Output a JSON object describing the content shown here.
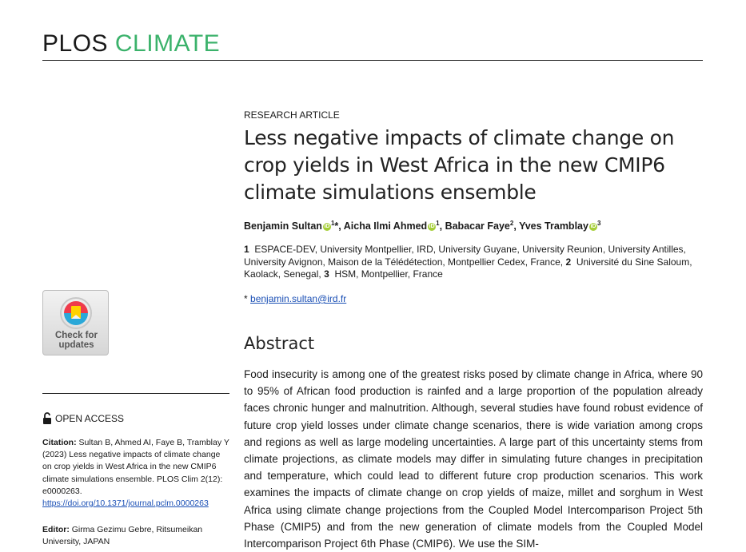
{
  "journal": {
    "name_part1": "PLOS",
    "name_part2": "CLIMATE"
  },
  "article": {
    "type": "RESEARCH ARTICLE",
    "title": "Less negative impacts of climate change on crop yields in West Africa in the new CMIP6 climate simulations ensemble",
    "authors": [
      {
        "name": "Benjamin Sultan",
        "sup": "1",
        "extra": "*"
      },
      {
        "name": "Aicha Ilmi Ahmed",
        "sup": "1"
      },
      {
        "name": "Babacar Faye",
        "sup": "2"
      },
      {
        "name": "Yves Tramblay",
        "sup": "3"
      }
    ],
    "affiliations": [
      {
        "num": "1",
        "text": "ESPACE-DEV, University Montpellier, IRD, University Guyane, University Reunion, University Antilles, University Avignon, Maison de la Télédétection, Montpellier Cedex, France,"
      },
      {
        "num": "2",
        "text": "Université du Sine Saloum, Kaolack, Senegal,"
      },
      {
        "num": "3",
        "text": "HSM, Montpellier, France"
      }
    ],
    "corresponding_marker": "*",
    "corresponding_email": "benjamin.sultan@ird.fr"
  },
  "abstract": {
    "heading": "Abstract",
    "text": "Food insecurity is among one of the greatest risks posed by climate change in Africa, where 90 to 95% of African food production is rainfed and a large proportion of the population already faces chronic hunger and malnutrition. Although, several studies have found robust evidence of future crop yield losses under climate change scenarios, there is wide variation among crops and regions as well as large modeling uncertainties. A large part of this uncertainty stems from climate projections, as climate models may differ in simulating future changes in precipitation and temperature, which could lead to different future crop production scenarios. This work examines the impacts of climate change on crop yields of maize, millet and sorghum in West Africa using climate change projections from the Coupled Model Intercomparison Project 5th Phase (CMIP5) and from the new generation of climate models from the Coupled Model Intercomparison Project 6th Phase (CMIP6). We use the SIM-"
  },
  "sidebar": {
    "check_updates_label": "Check for updates",
    "open_access": "OPEN ACCESS",
    "citation_label": "Citation:",
    "citation_text": "Sultan B, Ahmed AI, Faye B, Tramblay Y (2023) Less negative impacts of climate change on crop yields in West Africa in the new CMIP6 climate simulations ensemble. PLOS Clim 2(12): e0000263.",
    "citation_doi": "https://doi.org/10.1371/journal.pclm.0000263",
    "editor_label": "Editor:",
    "editor_text": "Girma Gezimu Gebre, Ritsumeikan University, JAPAN"
  },
  "colors": {
    "brand_green": "#3bb26b",
    "orcid_green": "#a6ce39",
    "link_blue": "#1a4fb5"
  },
  "icons": {
    "orcid": "orcid-icon",
    "lock": "open-lock-icon",
    "check_updates": "crossmark-icon"
  }
}
